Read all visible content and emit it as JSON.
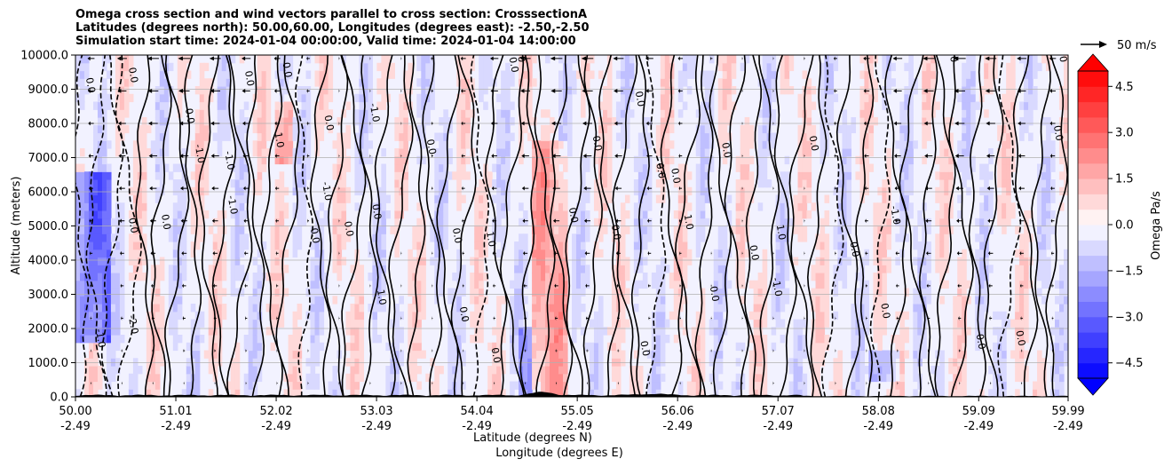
{
  "chart_data": {
    "type": "heatmap",
    "title_lines": [
      "Omega cross section and wind vectors parallel to cross section: CrosssectionA",
      "Latitudes (degrees north): 50.00,60.00, Longitudes (degrees east): -2.50,-2.50",
      "Simulation start time: 2024-01-04 00:00:00, Valid time: 2024-01-04 14:00:00"
    ],
    "xlabel_lat": "Latitude (degrees N)",
    "xlabel_lon": "Longitude (degrees E)",
    "ylabel": "Altitude (meters)",
    "xlim": [
      50.0,
      59.99
    ],
    "ylim": [
      0,
      10000
    ],
    "x_ticks": [
      {
        "lat": "50.00",
        "lon": "-2.49",
        "v": 50.0
      },
      {
        "lat": "51.01",
        "lon": "-2.49",
        "v": 51.01
      },
      {
        "lat": "52.02",
        "lon": "-2.49",
        "v": 52.02
      },
      {
        "lat": "53.03",
        "lon": "-2.49",
        "v": 53.03
      },
      {
        "lat": "54.04",
        "lon": "-2.49",
        "v": 54.04
      },
      {
        "lat": "55.05",
        "lon": "-2.49",
        "v": 55.05
      },
      {
        "lat": "56.06",
        "lon": "-2.49",
        "v": 56.06
      },
      {
        "lat": "57.07",
        "lon": "-2.49",
        "v": 57.07
      },
      {
        "lat": "58.08",
        "lon": "-2.49",
        "v": 58.08
      },
      {
        "lat": "59.09",
        "lon": "-2.49",
        "v": 59.09
      },
      {
        "lat": "59.99",
        "lon": "-2.49",
        "v": 59.99
      }
    ],
    "y_ticks": [
      {
        "label": "0.0",
        "v": 0
      },
      {
        "label": "1000.0",
        "v": 1000
      },
      {
        "label": "2000.0",
        "v": 2000
      },
      {
        "label": "3000.0",
        "v": 3000
      },
      {
        "label": "4000.0",
        "v": 4000
      },
      {
        "label": "5000.0",
        "v": 5000
      },
      {
        "label": "6000.0",
        "v": 6000
      },
      {
        "label": "7000.0",
        "v": 7000
      },
      {
        "label": "8000.0",
        "v": 8000
      },
      {
        "label": "9000.0",
        "v": 9000
      },
      {
        "label": "10000.0",
        "v": 10000
      }
    ],
    "grid": true,
    "colorbar": {
      "label": "Omega Pa/s",
      "range": [
        -5.0,
        5.0
      ],
      "levels": 20,
      "ticks": [
        {
          "label": "4.5",
          "v": 4.5
        },
        {
          "label": "3.0",
          "v": 3.0
        },
        {
          "label": "1.5",
          "v": 1.5
        },
        {
          "label": "0.0",
          "v": 0.0
        },
        {
          "label": "−1.5",
          "v": -1.5
        },
        {
          "label": "−3.0",
          "v": -3.0
        },
        {
          "label": "−4.5",
          "v": -4.5
        }
      ],
      "extend": "both"
    },
    "quiver_key": {
      "label": "50 m/s"
    },
    "contour_labels": [
      {
        "t": "0.0",
        "x": 50.12,
        "y": 9100
      },
      {
        "t": "0.0",
        "x": 50.55,
        "y": 9400
      },
      {
        "t": "0.0",
        "x": 51.12,
        "y": 8200
      },
      {
        "t": "0.0",
        "x": 51.72,
        "y": 9300
      },
      {
        "t": "0.0",
        "x": 52.1,
        "y": 9550
      },
      {
        "t": "0.0",
        "x": 52.52,
        "y": 8000
      },
      {
        "t": "0.0",
        "x": 53.55,
        "y": 7300
      },
      {
        "t": "0.0",
        "x": 54.38,
        "y": 9700
      },
      {
        "t": "0.0",
        "x": 54.45,
        "y": 10000
      },
      {
        "t": "0.0",
        "x": 55.22,
        "y": 7400
      },
      {
        "t": "0.0",
        "x": 55.65,
        "y": 8700
      },
      {
        "t": "0.0",
        "x": 55.86,
        "y": 6600
      },
      {
        "t": "0.0",
        "x": 56.01,
        "y": 6450
      },
      {
        "t": "0.0",
        "x": 56.52,
        "y": 7200
      },
      {
        "t": "0.0",
        "x": 57.4,
        "y": 7400
      },
      {
        "t": "0.0",
        "x": 58.8,
        "y": 10000
      },
      {
        "t": "0.0",
        "x": 59.86,
        "y": 7700
      },
      {
        "t": "0.0",
        "x": 59.9,
        "y": 10000
      },
      {
        "t": "-1.0",
        "x": 51.22,
        "y": 7100
      },
      {
        "t": "-1.0",
        "x": 51.52,
        "y": 6900
      },
      {
        "t": "-1.0",
        "x": 51.55,
        "y": 5600
      },
      {
        "t": "-1.0",
        "x": 52.5,
        "y": 6000
      },
      {
        "t": "-1.0",
        "x": 52.98,
        "y": 8300
      },
      {
        "t": "-1.0",
        "x": 57.03,
        "y": 3200
      },
      {
        "t": "-1.0",
        "x": 58.22,
        "y": 5300
      },
      {
        "t": "1.0",
        "x": 52.02,
        "y": 7500
      },
      {
        "t": "1.0",
        "x": 53.05,
        "y": 2900
      },
      {
        "t": "1.0",
        "x": 54.15,
        "y": 4600
      },
      {
        "t": "1.0",
        "x": 56.14,
        "y": 5100
      },
      {
        "t": "1.0",
        "x": 57.07,
        "y": 4800
      },
      {
        "t": "0.0",
        "x": 50.55,
        "y": 5000
      },
      {
        "t": "0.0",
        "x": 50.88,
        "y": 5100
      },
      {
        "t": "0.0",
        "x": 52.38,
        "y": 4700
      },
      {
        "t": "0.0",
        "x": 52.72,
        "y": 4900
      },
      {
        "t": "0.0",
        "x": 53.0,
        "y": 5400
      },
      {
        "t": "0.0",
        "x": 53.81,
        "y": 4700
      },
      {
        "t": "0.0",
        "x": 54.98,
        "y": 5300
      },
      {
        "t": "0.0",
        "x": 55.41,
        "y": 4800
      },
      {
        "t": "0.0",
        "x": 56.8,
        "y": 4200
      },
      {
        "t": "0.0",
        "x": 56.4,
        "y": 3000
      },
      {
        "t": "0.0",
        "x": 57.81,
        "y": 4300
      },
      {
        "t": "0.0",
        "x": 58.12,
        "y": 2500
      },
      {
        "t": "0.0",
        "x": 59.48,
        "y": 1700
      },
      {
        "t": "0.0",
        "x": 53.88,
        "y": 2400
      },
      {
        "t": "0.0",
        "x": 54.2,
        "y": 1200
      },
      {
        "t": "0.0",
        "x": 55.7,
        "y": 1400
      },
      {
        "t": "0.0",
        "x": 59.08,
        "y": 1600
      },
      {
        "t": "-2.0",
        "x": 50.55,
        "y": 2100
      },
      {
        "t": "-1.0",
        "x": 50.22,
        "y": 1700
      }
    ]
  }
}
